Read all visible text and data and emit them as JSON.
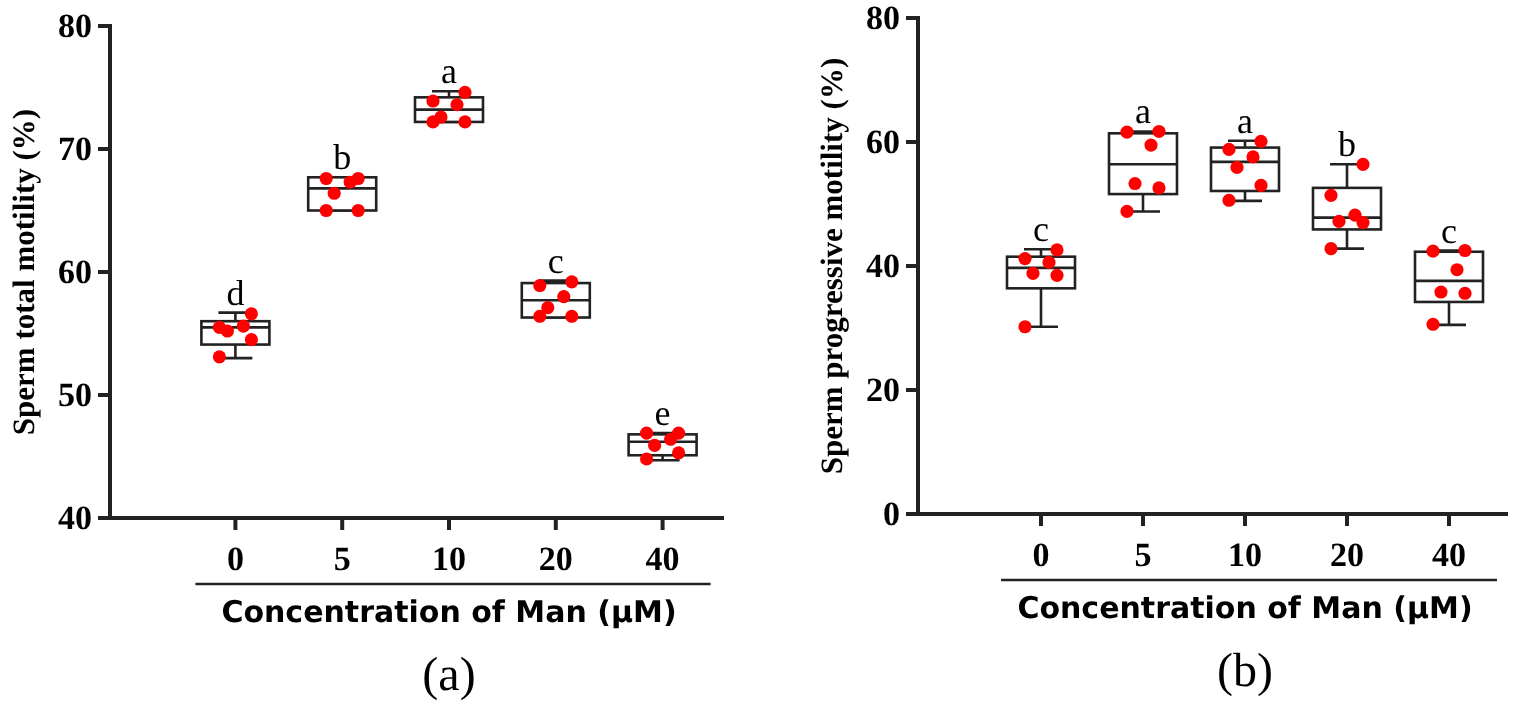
{
  "chart_data": [
    {
      "type": "box",
      "xlabel": "Concentration of Man (μM)",
      "ylabel": "Sperm total motility (%)",
      "categories": [
        "0",
        "5",
        "10",
        "20",
        "40"
      ],
      "ylim": [
        40,
        80
      ],
      "yticks": [
        40,
        50,
        60,
        70,
        80
      ],
      "marker": "circle",
      "boxes": [
        {
          "low": 53.0,
          "q1": 54.1,
          "median": 55.5,
          "q3": 56.0,
          "high": 56.7
        },
        {
          "low": 65.0,
          "q1": 65.0,
          "median": 66.8,
          "q3": 67.7,
          "high": 67.7
        },
        {
          "low": 72.2,
          "q1": 72.2,
          "median": 73.2,
          "q3": 74.2,
          "high": 74.7
        },
        {
          "low": 56.3,
          "q1": 56.3,
          "median": 57.7,
          "q3": 59.1,
          "high": 59.3
        },
        {
          "low": 44.7,
          "q1": 45.1,
          "median": 46.2,
          "q3": 46.8,
          "high": 46.9
        }
      ],
      "series": [
        {
          "type": "scatter",
          "color": "#ff0000",
          "x": [
            "0",
            "0",
            "0",
            "0",
            "0",
            "0",
            "5",
            "5",
            "5",
            "5",
            "5",
            "5",
            "10",
            "10",
            "10",
            "10",
            "10",
            "10",
            "20",
            "20",
            "20",
            "20",
            "20",
            "20",
            "40",
            "40",
            "40",
            "40",
            "40",
            "40"
          ],
          "values": [
            53.1,
            54.5,
            55.2,
            55.6,
            55.5,
            56.6,
            65.0,
            65.0,
            66.4,
            67.3,
            67.6,
            67.6,
            72.2,
            72.2,
            72.6,
            73.6,
            73.9,
            74.6,
            56.4,
            56.4,
            57.1,
            58.0,
            58.9,
            59.2,
            44.8,
            45.3,
            45.9,
            46.4,
            46.9,
            46.9
          ]
        }
      ],
      "annotations": [
        {
          "text": "d",
          "x": "0",
          "y": 56.7
        },
        {
          "text": "b",
          "x": "5",
          "y": 67.7
        },
        {
          "text": "a",
          "x": "10",
          "y": 74.7
        },
        {
          "text": "c",
          "x": "20",
          "y": 59.3
        },
        {
          "text": "e",
          "x": "40",
          "y": 46.9
        },
        "(a)"
      ]
    },
    {
      "type": "box",
      "xlabel": "Concentration of Man (μM)",
      "ylabel": "Sperm progressive motility (%)",
      "categories": [
        "0",
        "5",
        "10",
        "20",
        "40"
      ],
      "ylim": [
        0,
        80
      ],
      "yticks": [
        0,
        20,
        40,
        60,
        80
      ],
      "marker": "circle",
      "boxes": [
        {
          "low": 30.2,
          "q1": 36.4,
          "median": 39.7,
          "q3": 41.5,
          "high": 42.7
        },
        {
          "low": 48.8,
          "q1": 51.6,
          "median": 56.4,
          "q3": 61.4,
          "high": 61.7
        },
        {
          "low": 50.5,
          "q1": 52.1,
          "median": 56.8,
          "q3": 59.1,
          "high": 60.2
        },
        {
          "low": 42.8,
          "q1": 45.9,
          "median": 47.8,
          "q3": 52.6,
          "high": 56.4
        },
        {
          "low": 30.5,
          "q1": 34.2,
          "median": 37.6,
          "q3": 42.3,
          "high": 42.5
        }
      ],
      "series": [
        {
          "type": "scatter",
          "color": "#ff0000",
          "x": [
            "0",
            "0",
            "0",
            "0",
            "0",
            "0",
            "5",
            "5",
            "5",
            "5",
            "5",
            "5",
            "10",
            "10",
            "10",
            "10",
            "10",
            "10",
            "20",
            "20",
            "20",
            "20",
            "20",
            "20",
            "40",
            "40",
            "40",
            "40",
            "40",
            "40"
          ],
          "values": [
            30.2,
            38.5,
            38.8,
            40.6,
            41.2,
            42.6,
            48.8,
            52.6,
            53.3,
            59.5,
            61.6,
            61.7,
            50.6,
            53.0,
            55.9,
            57.6,
            58.8,
            60.1,
            42.8,
            47.0,
            47.2,
            48.2,
            51.4,
            56.4,
            30.6,
            35.6,
            35.8,
            39.4,
            42.4,
            42.5
          ]
        }
      ],
      "annotations": [
        {
          "text": "c",
          "x": "0",
          "y": 42.7
        },
        {
          "text": "a",
          "x": "5",
          "y": 61.7
        },
        {
          "text": "a",
          "x": "10",
          "y": 60.2
        },
        {
          "text": "b",
          "x": "20",
          "y": 56.4
        },
        {
          "text": "c",
          "x": "40",
          "y": 42.5
        },
        "(b)"
      ]
    }
  ]
}
